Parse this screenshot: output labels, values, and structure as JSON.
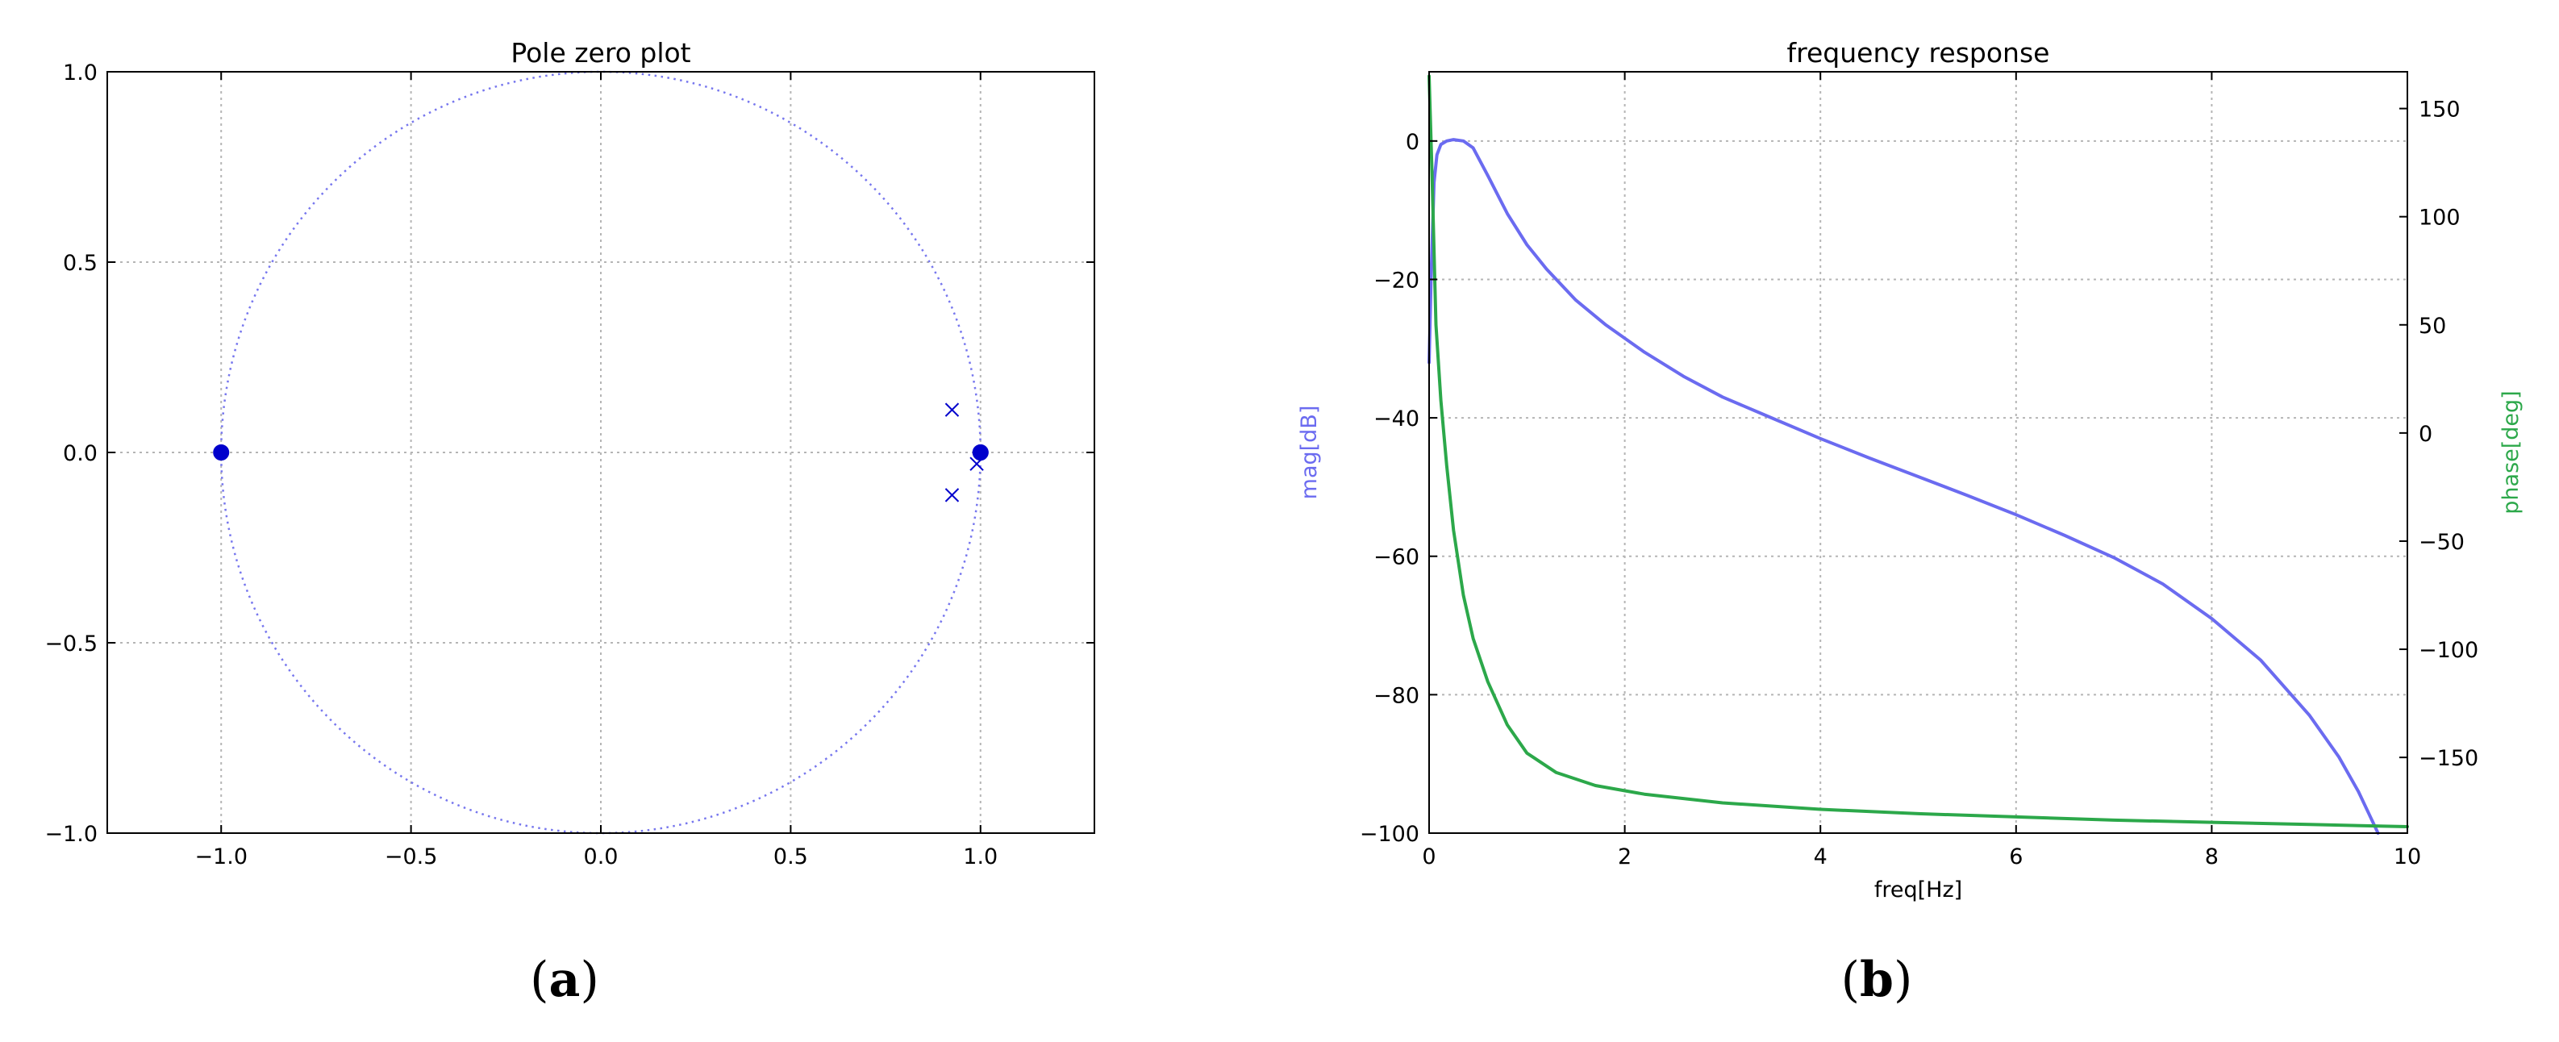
{
  "chart_data": [
    {
      "type": "scatter",
      "title": "Pole zero plot",
      "panel_label": "a",
      "xlim": [
        -1.3,
        1.3
      ],
      "ylim": [
        -1.0,
        1.0
      ],
      "xticks": [
        -1.0,
        -0.5,
        0.0,
        0.5,
        1.0
      ],
      "xtick_labels": [
        "−1.0",
        "−0.5",
        "0.0",
        "0.5",
        "1.0"
      ],
      "yticks": [
        -1.0,
        -0.5,
        0.0,
        0.5,
        1.0
      ],
      "ytick_labels": [
        "−1.0",
        "−0.5",
        "0.0",
        "0.5",
        "1.0"
      ],
      "grid": true,
      "unit_circle": true,
      "zeros": [
        [
          -1.0,
          0.0
        ],
        [
          1.0,
          0.0
        ],
        [
          1.0,
          0.0
        ]
      ],
      "poles": [
        [
          0.925,
          0.112
        ],
        [
          0.925,
          -0.112
        ],
        [
          0.99,
          -0.03
        ]
      ],
      "colors": {
        "markers": "#0000cc",
        "circle": "#7777ee"
      }
    },
    {
      "type": "line",
      "title": "frequency response",
      "panel_label": "b",
      "xlabel": "freq[Hz]",
      "ylabel": "mag[dB]",
      "y2label": "phase[deg]",
      "xlim": [
        0,
        10
      ],
      "ylim": [
        -100,
        10
      ],
      "y2lim": [
        -185,
        167
      ],
      "xticks": [
        0,
        2,
        4,
        6,
        8,
        10
      ],
      "xtick_labels": [
        "0",
        "2",
        "4",
        "6",
        "8",
        "10"
      ],
      "yticks": [
        -100,
        -80,
        -60,
        -40,
        -20,
        0
      ],
      "ytick_labels": [
        "−100",
        "−80",
        "−60",
        "−40",
        "−20",
        "0"
      ],
      "y2ticks": [
        -150,
        -100,
        -50,
        0,
        50,
        100,
        150
      ],
      "y2tick_labels": [
        "−150",
        "−100",
        "−50",
        "0",
        "50",
        "100",
        "150"
      ],
      "grid": true,
      "series": [
        {
          "axis": "left",
          "color": "#6b6bf0",
          "x": [
            0.0,
            0.02,
            0.05,
            0.08,
            0.12,
            0.18,
            0.25,
            0.35,
            0.45,
            0.6,
            0.8,
            1.0,
            1.2,
            1.5,
            1.8,
            2.2,
            2.6,
            3.0,
            3.5,
            4.0,
            4.5,
            5.0,
            5.5,
            6.0,
            6.5,
            7.0,
            7.5,
            8.0,
            8.5,
            9.0,
            9.3,
            9.5,
            9.6,
            9.7
          ],
          "y": [
            -32.0,
            -20.0,
            -6.0,
            -2.0,
            -0.5,
            0.0,
            0.2,
            0.0,
            -1.0,
            -5.0,
            -10.5,
            -15.0,
            -18.5,
            -23.0,
            -26.5,
            -30.5,
            -34.0,
            -37.0,
            -40.0,
            -43.0,
            -45.8,
            -48.5,
            -51.2,
            -54.0,
            -57.0,
            -60.2,
            -64.0,
            -69.0,
            -75.0,
            -83.0,
            -89.0,
            -94.0,
            -97.0,
            -100.0
          ]
        },
        {
          "axis": "right",
          "color": "#2ca84a",
          "x": [
            0.0,
            0.03,
            0.07,
            0.12,
            0.18,
            0.25,
            0.35,
            0.45,
            0.6,
            0.8,
            1.0,
            1.3,
            1.7,
            2.2,
            3.0,
            4.0,
            5.0,
            6.0,
            7.0,
            8.0,
            9.0,
            10.0
          ],
          "y": [
            165.0,
            120.0,
            50.0,
            15.0,
            -15.0,
            -45.0,
            -75.0,
            -95.0,
            -115.0,
            -135.0,
            -148.0,
            -157.0,
            -163.0,
            -167.0,
            -171.0,
            -174.0,
            -176.0,
            -177.5,
            -179.0,
            -180.0,
            -181.0,
            -182.0
          ]
        }
      ]
    }
  ]
}
